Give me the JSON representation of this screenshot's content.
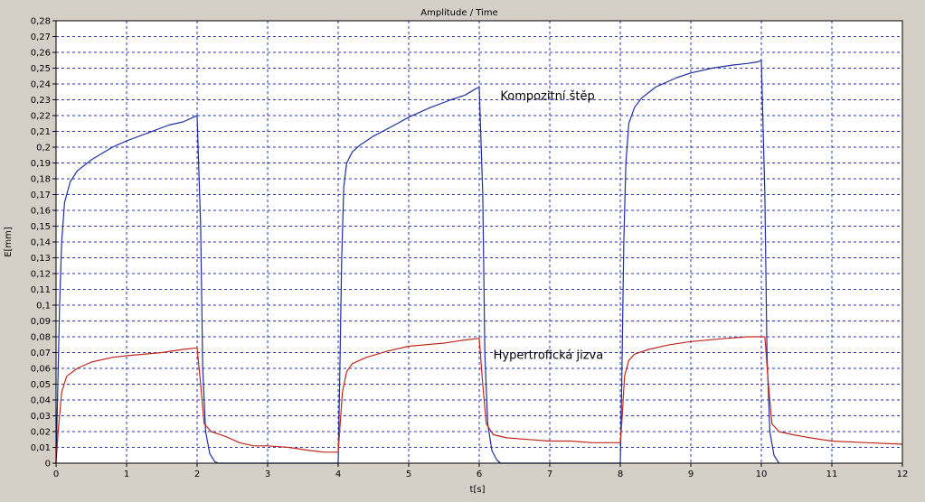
{
  "chart_data": {
    "type": "line",
    "title": "Amplitude / Time",
    "xlabel": "t[s]",
    "ylabel": "E[mm]",
    "xlim": [
      0,
      12
    ],
    "ylim": [
      0,
      0.28
    ],
    "x_ticks": [
      0,
      1,
      2,
      3,
      4,
      5,
      6,
      7,
      8,
      9,
      10,
      11,
      12
    ],
    "x_tick_labels": [
      "0",
      "1",
      "2",
      "3",
      "4",
      "5",
      "6",
      "7",
      "8",
      "9",
      "10",
      "11",
      "12"
    ],
    "y_ticks": [
      0,
      0.01,
      0.02,
      0.03,
      0.04,
      0.05,
      0.06,
      0.07,
      0.08,
      0.09,
      0.1,
      0.11,
      0.12,
      0.13,
      0.14,
      0.15,
      0.16,
      0.17,
      0.18,
      0.19,
      0.2,
      0.21,
      0.22,
      0.23,
      0.24,
      0.25,
      0.26,
      0.27,
      0.28
    ],
    "y_tick_labels": [
      "0",
      "0,01",
      "0,02",
      "0,03",
      "0,04",
      "0,05",
      "0,06",
      "0,07",
      "0,08",
      "0,09",
      "0,1",
      "0,11",
      "0,12",
      "0,13",
      "0,14",
      "0,15",
      "0,16",
      "0,17",
      "0,18",
      "0,19",
      "0,2",
      "0,21",
      "0,22",
      "0,23",
      "0,24",
      "0,25",
      "0,26",
      "0,27",
      "0,28"
    ],
    "grid": true,
    "background": "#ffffff",
    "frame_background": "#d4d0c8",
    "series": [
      {
        "color": "#1f2fa0",
        "x": [
          0,
          0.02,
          0.05,
          0.08,
          0.12,
          0.2,
          0.3,
          0.5,
          0.8,
          1.0,
          1.3,
          1.6,
          1.8,
          1.95,
          2.0,
          2.05,
          2.08,
          2.12,
          2.18,
          2.25,
          2.3,
          4.0,
          4.02,
          4.05,
          4.08,
          4.12,
          4.2,
          4.3,
          4.5,
          4.8,
          5.0,
          5.3,
          5.6,
          5.8,
          5.95,
          6.0,
          6.05,
          6.08,
          6.12,
          6.18,
          6.25,
          6.3,
          8.0,
          8.02,
          8.05,
          8.08,
          8.12,
          8.2,
          8.3,
          8.5,
          8.8,
          9.0,
          9.3,
          9.6,
          9.8,
          9.95,
          10.0,
          10.05,
          10.08,
          10.12,
          10.18,
          10.25
        ],
        "y": [
          0,
          0.04,
          0.1,
          0.14,
          0.165,
          0.178,
          0.185,
          0.192,
          0.2,
          0.204,
          0.209,
          0.214,
          0.216,
          0.219,
          0.22,
          0.15,
          0.06,
          0.02,
          0.006,
          0.001,
          0,
          0,
          0.05,
          0.13,
          0.175,
          0.19,
          0.197,
          0.201,
          0.207,
          0.214,
          0.219,
          0.225,
          0.23,
          0.233,
          0.237,
          0.238,
          0.17,
          0.07,
          0.025,
          0.008,
          0.002,
          0,
          0,
          0.05,
          0.14,
          0.19,
          0.215,
          0.225,
          0.231,
          0.238,
          0.244,
          0.247,
          0.25,
          0.252,
          0.253,
          0.254,
          0.255,
          0.17,
          0.07,
          0.02,
          0.005,
          0
        ]
      },
      {
        "color": "#c0281c",
        "x": [
          0,
          0.03,
          0.08,
          0.15,
          0.3,
          0.5,
          0.8,
          1.0,
          1.5,
          1.8,
          2.0,
          2.05,
          2.1,
          2.2,
          2.4,
          2.6,
          2.8,
          3.0,
          3.3,
          3.6,
          3.8,
          4.0,
          4.02,
          4.06,
          4.12,
          4.2,
          4.4,
          4.7,
          5.0,
          5.5,
          5.8,
          6.0,
          6.05,
          6.1,
          6.2,
          6.4,
          6.7,
          7.0,
          7.3,
          7.6,
          7.9,
          8.0,
          8.02,
          8.06,
          8.12,
          8.2,
          8.4,
          8.7,
          9.0,
          9.5,
          9.8,
          10.05,
          10.1,
          10.15,
          10.25,
          10.45,
          10.7,
          11.0,
          11.5,
          12.0
        ],
        "y": [
          0,
          0.02,
          0.045,
          0.055,
          0.06,
          0.064,
          0.067,
          0.068,
          0.07,
          0.072,
          0.073,
          0.05,
          0.025,
          0.02,
          0.017,
          0.013,
          0.011,
          0.011,
          0.01,
          0.008,
          0.007,
          0.007,
          0.02,
          0.045,
          0.058,
          0.063,
          0.067,
          0.071,
          0.074,
          0.076,
          0.078,
          0.079,
          0.05,
          0.025,
          0.018,
          0.016,
          0.015,
          0.014,
          0.014,
          0.013,
          0.013,
          0.013,
          0.025,
          0.055,
          0.065,
          0.069,
          0.072,
          0.075,
          0.077,
          0.079,
          0.08,
          0.08,
          0.05,
          0.025,
          0.02,
          0.018,
          0.016,
          0.014,
          0.013,
          0.012
        ]
      }
    ],
    "annotations": [
      {
        "text": "Kompozitní štěp",
        "x": 6.3,
        "y": 0.23
      },
      {
        "text": "Hypertrofická jizva",
        "x": 6.2,
        "y": 0.066
      }
    ]
  }
}
